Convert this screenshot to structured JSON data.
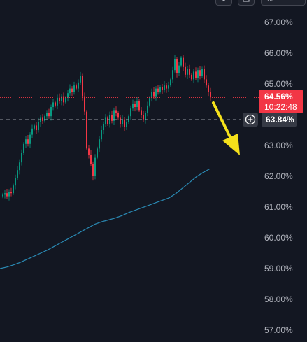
{
  "toolbar": {
    "icon1": "chevron-down-icon",
    "icon2": "square-icon",
    "percent_label": "%"
  },
  "current_price": {
    "value": "64.56%",
    "countdown": "10:22:48",
    "color": "#f23645"
  },
  "crosshair": {
    "value": "63.84%"
  },
  "colors": {
    "background": "#131722",
    "up": "#089981",
    "down": "#f23645",
    "ma_line": "#2a8ab4",
    "arrow": "#f5e11b"
  },
  "chart_data": {
    "type": "candlestick",
    "title": "",
    "xlabel": "",
    "ylabel": "",
    "ylim": [
      56.8,
      67.7
    ],
    "y_ticks": [
      "67.00%",
      "66.00%",
      "65.00%",
      "64.00%",
      "63.00%",
      "62.00%",
      "61.00%",
      "60.00%",
      "59.00%",
      "58.00%",
      "57.00%"
    ],
    "y_tick_values": [
      67,
      66,
      65,
      64,
      63,
      62,
      61,
      60,
      59,
      58,
      57
    ],
    "price_line": 64.56,
    "crosshair_line": 63.84,
    "close": [
      61.4,
      61.45,
      61.35,
      61.5,
      61.45,
      61.7,
      61.95,
      62.2,
      62.45,
      62.75,
      63.05,
      63.2,
      63.05,
      63.35,
      63.55,
      63.65,
      63.5,
      63.75,
      63.9,
      63.8,
      63.95,
      64.05,
      63.95,
      64.25,
      64.4,
      64.3,
      64.55,
      64.45,
      64.6,
      64.4,
      64.55,
      64.7,
      64.85,
      64.75,
      64.95,
      64.85,
      65.05,
      65.25,
      64.6,
      64.1,
      62.9,
      62.7,
      62.4,
      62.0,
      62.6,
      62.9,
      63.2,
      63.5,
      63.7,
      63.9,
      63.7,
      64.0,
      63.8,
      64.15,
      64.05,
      63.9,
      63.7,
      63.85,
      63.6,
      63.75,
      63.95,
      64.2,
      64.35,
      64.25,
      64.45,
      64.15,
      64.0,
      63.85,
      64.05,
      64.3,
      64.55,
      64.75,
      64.6,
      64.85,
      64.75,
      64.9,
      64.8,
      64.95,
      64.85,
      64.95,
      65.15,
      65.45,
      65.8,
      65.35,
      65.6,
      65.85,
      65.55,
      65.3,
      65.5,
      65.3,
      65.15,
      65.4,
      65.2,
      65.45,
      65.25,
      65.5,
      65.15,
      64.95,
      64.75,
      64.56
    ],
    "ma_line": [
      59.0,
      59.05,
      59.12,
      59.2,
      59.3,
      59.4,
      59.5,
      59.6,
      59.72,
      59.84,
      59.96,
      60.08,
      60.2,
      60.32,
      60.44,
      60.52,
      60.58,
      60.64,
      60.72,
      60.82,
      60.9,
      60.98,
      61.06,
      61.14,
      61.22,
      61.3,
      61.44,
      61.62,
      61.8,
      61.98,
      62.12,
      62.24
    ]
  }
}
